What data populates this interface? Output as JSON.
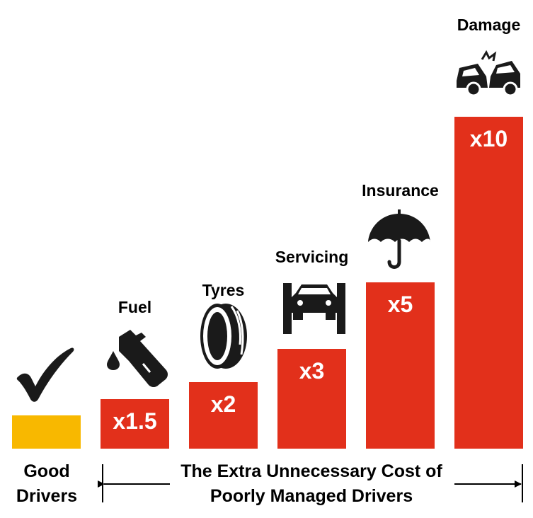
{
  "chart_data": {
    "type": "bar",
    "categories": [
      "",
      "Fuel",
      "Tyres",
      "Servicing",
      "Insurance",
      "Damage"
    ],
    "values": [
      1,
      1.5,
      2,
      3,
      5,
      10
    ],
    "value_labels": [
      "",
      "x1.5",
      "x2",
      "x3",
      "x5",
      "x10"
    ],
    "icons": [
      "checkmark-icon",
      "fuel-pump-icon",
      "tyre-icon",
      "car-lift-icon",
      "umbrella-icon",
      "car-crash-icon"
    ],
    "colors": [
      "#F8B800",
      "#E2301B",
      "#E2301B",
      "#E2301B",
      "#E2301B",
      "#E2301B"
    ],
    "ylim": [
      0,
      10
    ],
    "grid": false,
    "legend": "none"
  },
  "bottom": {
    "good_line1": "Good",
    "good_line2": "Drivers",
    "extra_line1": "The Extra Unnecessary Cost of",
    "extra_line2": "Poorly Managed Drivers"
  }
}
